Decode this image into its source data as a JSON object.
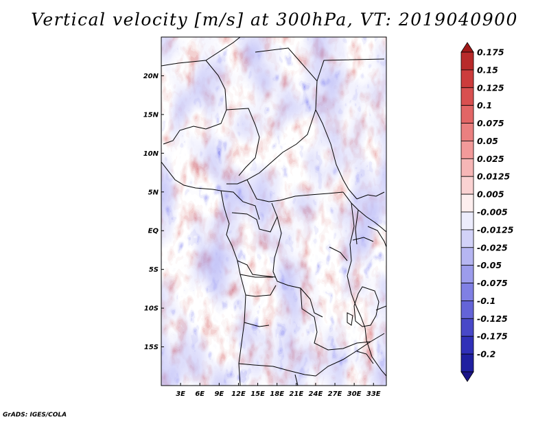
{
  "title": "Vertical velocity [m/s] at 300hPa, VT: 2019040900",
  "credit": "GrADS: IGES/COLA",
  "lon_ticks": [
    "3E",
    "6E",
    "9E",
    "12E",
    "15E",
    "18E",
    "21E",
    "24E",
    "27E",
    "30E",
    "33E"
  ],
  "lat_ticks": [
    "20N",
    "15N",
    "10N",
    "5N",
    "EQ",
    "5S",
    "10S",
    "15S"
  ],
  "colorbar": {
    "labels": [
      "0.175",
      "0.15",
      "0.125",
      "0.1",
      "0.075",
      "0.05",
      "0.025",
      "0.0125",
      "0.005",
      "-0.005",
      "-0.0125",
      "-0.025",
      "-0.05",
      "-0.075",
      "-0.1",
      "-0.125",
      "-0.175",
      "-0.2"
    ],
    "colors": [
      "#a01818",
      "#b82a2a",
      "#cc3c3c",
      "#d85050",
      "#e26666",
      "#ea8080",
      "#f29a9a",
      "#f6b6b6",
      "#fad2d2",
      "#fdeeee",
      "#ececfc",
      "#d2d2f8",
      "#b6b6f2",
      "#9c9cec",
      "#8080e4",
      "#6464d8",
      "#4848c8",
      "#3030b8",
      "#2020a0",
      "#1a1488"
    ]
  },
  "chart_data": {
    "type": "heatmap",
    "title": "Vertical velocity [m/s] at 300hPa, VT: 2019040900",
    "field": "Vertical velocity",
    "units": "m/s",
    "level": "300hPa",
    "valid_time": "2019040900",
    "lon_range": [
      0,
      35
    ],
    "lat_range": [
      -20,
      25
    ],
    "lon_ticks": [
      3,
      6,
      9,
      12,
      15,
      18,
      21,
      24,
      27,
      30,
      33
    ],
    "lat_ticks": [
      20,
      15,
      10,
      5,
      0,
      -5,
      -10,
      -15
    ],
    "contour_levels": [
      -0.2,
      -0.175,
      -0.125,
      -0.1,
      -0.075,
      -0.05,
      -0.025,
      -0.0125,
      -0.005,
      0.005,
      0.0125,
      0.025,
      0.05,
      0.075,
      0.1,
      0.125,
      0.15,
      0.175
    ]
  }
}
